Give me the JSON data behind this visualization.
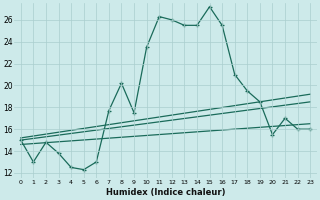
{
  "xlabel": "Humidex (Indice chaleur)",
  "background_color": "#cdeaea",
  "grid_color": "#aacece",
  "line_color": "#1a6b5a",
  "xlim": [
    -0.5,
    23.5
  ],
  "ylim": [
    11.5,
    27.5
  ],
  "yticks": [
    12,
    14,
    16,
    18,
    20,
    22,
    24,
    26
  ],
  "xticks": [
    0,
    1,
    2,
    3,
    4,
    5,
    6,
    7,
    8,
    9,
    10,
    11,
    12,
    13,
    14,
    15,
    16,
    17,
    18,
    19,
    20,
    21,
    22,
    23
  ],
  "curve1_x": [
    0,
    1,
    2,
    3,
    4,
    5,
    6,
    7,
    8,
    9,
    10,
    11,
    12,
    13,
    14,
    15,
    16,
    17,
    18,
    19,
    20,
    21,
    22,
    23
  ],
  "curve1_y": [
    15.0,
    13.0,
    14.8,
    13.8,
    12.5,
    12.3,
    13.0,
    17.7,
    20.2,
    17.5,
    23.5,
    26.3,
    26.0,
    25.5,
    25.5,
    27.2,
    25.5,
    21.0,
    19.5,
    18.5,
    15.5,
    17.0,
    16.0,
    16.0
  ],
  "curve2_x": [
    0,
    23
  ],
  "curve2_y": [
    15.2,
    19.2
  ],
  "curve3_x": [
    0,
    23
  ],
  "curve3_y": [
    15.0,
    18.5
  ],
  "curve4_x": [
    0,
    23
  ],
  "curve4_y": [
    14.6,
    16.5
  ]
}
